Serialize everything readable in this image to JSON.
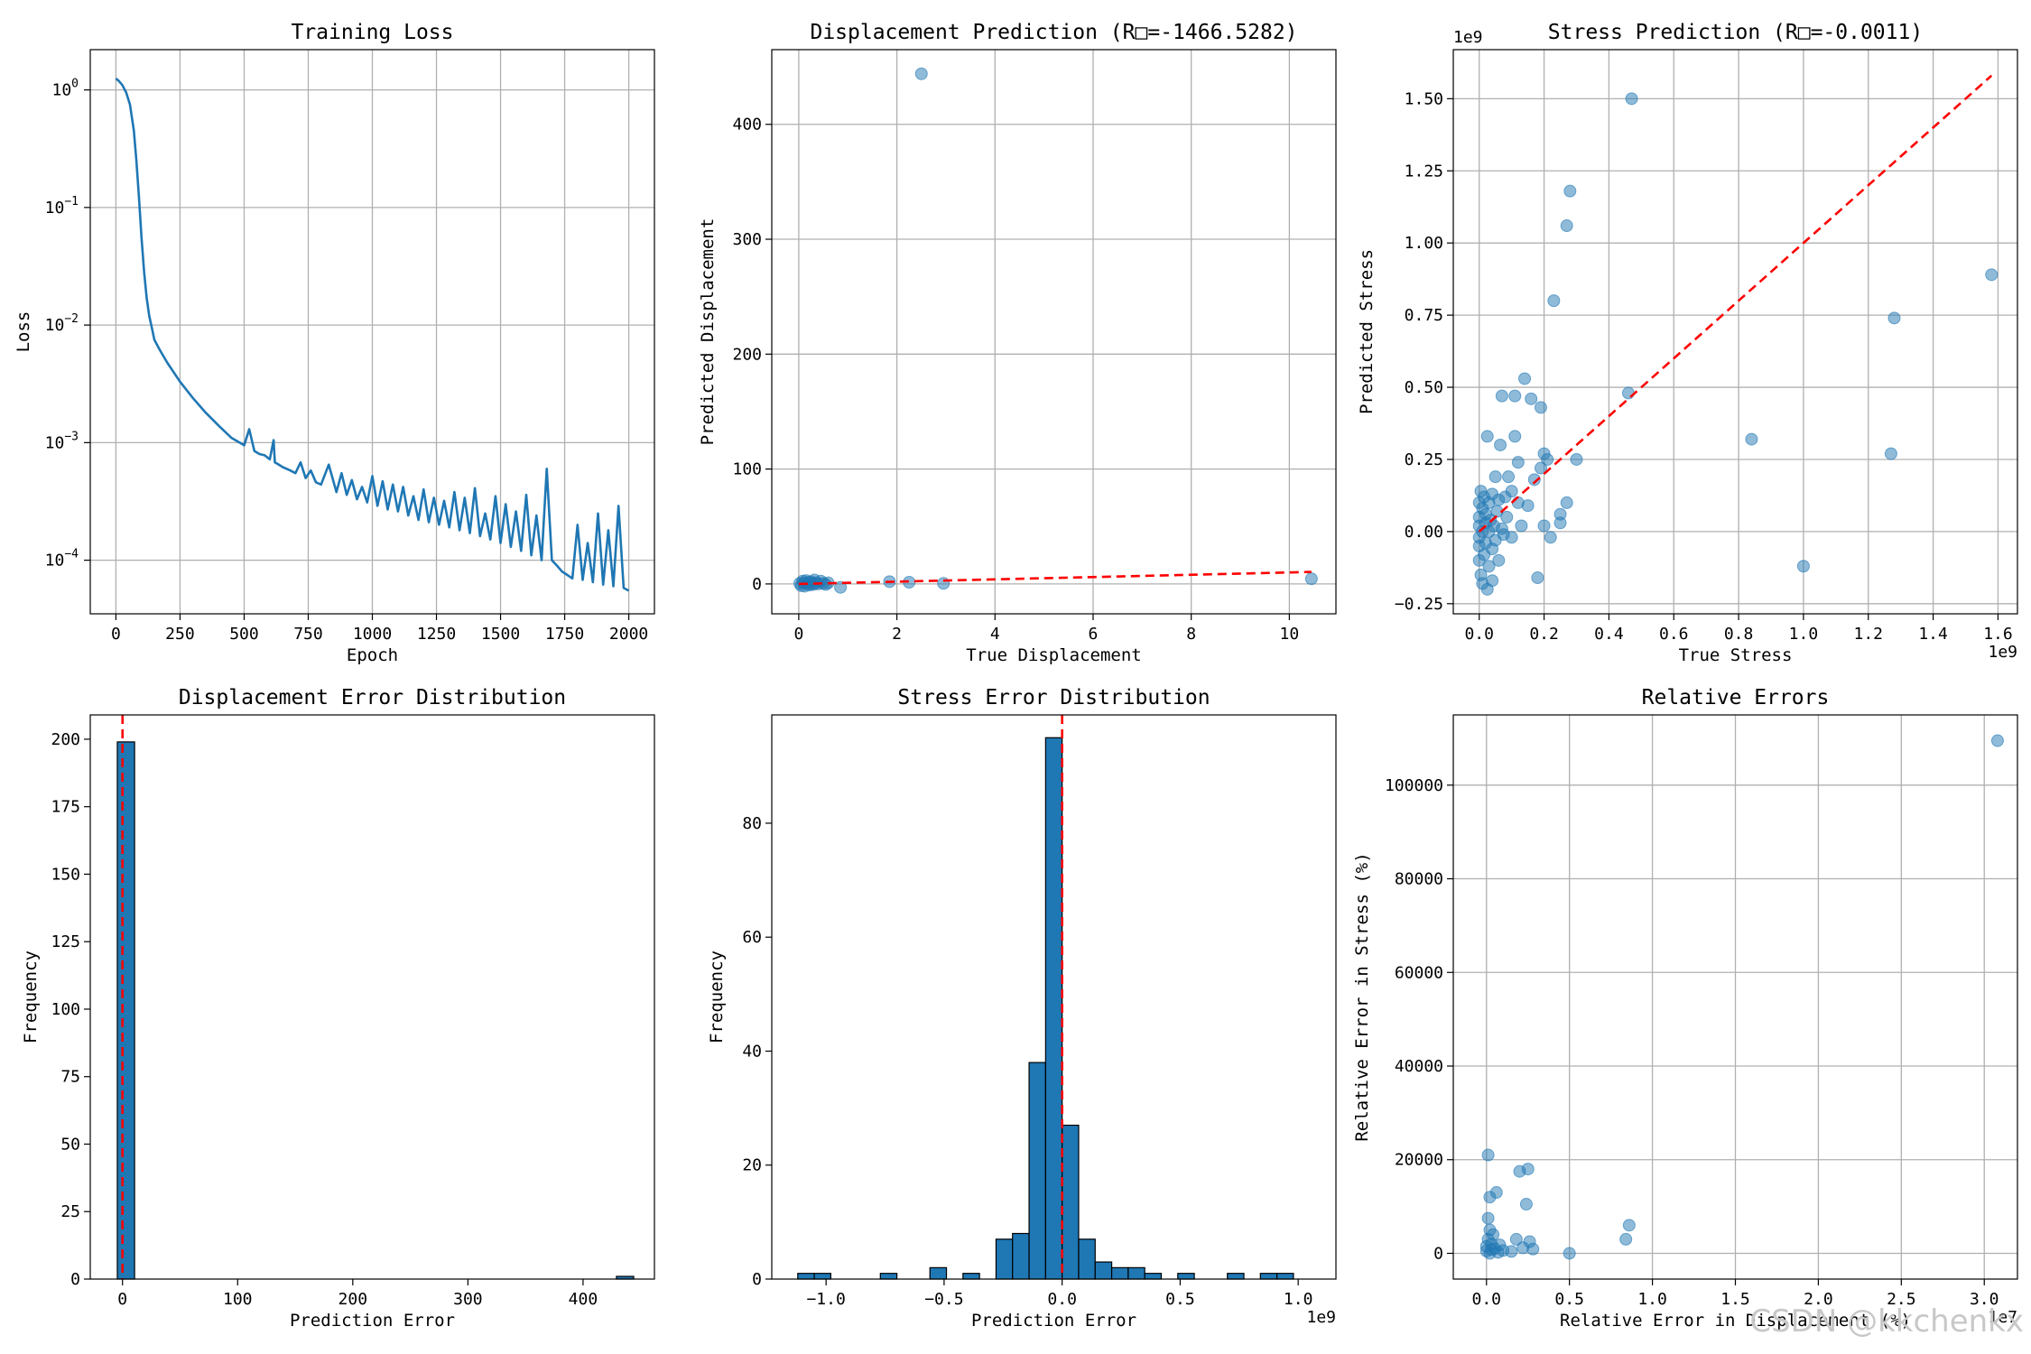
{
  "watermark": "CSDN @kkchenkx",
  "colors": {
    "series": "#1f77b4",
    "reference": "#ff0000",
    "grid": "#b0b0b0"
  },
  "chart_data": [
    {
      "id": "training-loss",
      "type": "line",
      "title": "Training Loss",
      "xlabel": "Epoch",
      "ylabel": "Loss",
      "yscale": "log",
      "xlim": [
        -100,
        2100
      ],
      "ylim": [
        3.5e-05,
        2.2
      ],
      "xticks": [
        0,
        250,
        500,
        750,
        1000,
        1250,
        1500,
        1750,
        2000
      ],
      "yticks": [
        {
          "value": 1,
          "base": "10",
          "exp": "0"
        },
        {
          "value": 0.1,
          "base": "10",
          "exp": "−1"
        },
        {
          "value": 0.01,
          "base": "10",
          "exp": "−2"
        },
        {
          "value": 0.001,
          "base": "10",
          "exp": "−3"
        },
        {
          "value": 0.0001,
          "base": "10",
          "exp": "−4"
        }
      ],
      "x": [
        0,
        10,
        25,
        40,
        55,
        70,
        80,
        90,
        100,
        110,
        120,
        130,
        140,
        150,
        170,
        200,
        250,
        300,
        350,
        400,
        450,
        500,
        520,
        540,
        560,
        580,
        600,
        615,
        620,
        630,
        650,
        680,
        700,
        720,
        740,
        760,
        780,
        800,
        830,
        860,
        880,
        900,
        920,
        940,
        960,
        980,
        1000,
        1020,
        1040,
        1060,
        1080,
        1100,
        1120,
        1140,
        1160,
        1180,
        1200,
        1220,
        1240,
        1260,
        1280,
        1300,
        1320,
        1340,
        1360,
        1380,
        1400,
        1420,
        1440,
        1460,
        1480,
        1500,
        1520,
        1540,
        1560,
        1580,
        1600,
        1620,
        1640,
        1660,
        1680,
        1700,
        1720,
        1740,
        1760,
        1780,
        1800,
        1820,
        1840,
        1860,
        1880,
        1900,
        1920,
        1940,
        1960,
        1980,
        2000
      ],
      "y": [
        1.25,
        1.2,
        1.1,
        0.95,
        0.75,
        0.45,
        0.25,
        0.12,
        0.055,
        0.028,
        0.017,
        0.012,
        0.0095,
        0.0075,
        0.0062,
        0.0048,
        0.0033,
        0.0024,
        0.0018,
        0.0014,
        0.0011,
        0.00095,
        0.0013,
        0.00085,
        0.0008,
        0.00078,
        0.00072,
        0.00105,
        0.00068,
        0.00066,
        0.00062,
        0.00058,
        0.00055,
        0.00068,
        0.0005,
        0.00058,
        0.00046,
        0.00044,
        0.00065,
        0.00038,
        0.00055,
        0.00036,
        0.00048,
        0.00033,
        0.00042,
        0.00031,
        0.00052,
        0.00029,
        0.00047,
        0.00027,
        0.00044,
        0.00026,
        0.00042,
        0.00024,
        0.00035,
        0.00022,
        0.0004,
        0.00021,
        0.00034,
        0.0002,
        0.00032,
        0.00019,
        0.00038,
        0.00018,
        0.00034,
        0.00017,
        0.00041,
        0.00016,
        0.00025,
        0.00015,
        0.00035,
        0.00014,
        0.0003,
        0.00013,
        0.00026,
        0.00012,
        0.00036,
        0.00011,
        0.00024,
        0.0001,
        0.0006,
        0.0001,
        9e-05,
        8e-05,
        7.5e-05,
        7e-05,
        0.0002,
        6.8e-05,
        0.00014,
        6.5e-05,
        0.00025,
        6.2e-05,
        0.00018,
        6e-05,
        0.00029,
        5.8e-05,
        5.5e-05
      ]
    },
    {
      "id": "displacement-prediction",
      "type": "scatter",
      "title": "Displacement Prediction (R□=-1466.5282)",
      "xlabel": "True Displacement",
      "ylabel": "Predicted Displacement",
      "xlim": [
        -0.55,
        10.95
      ],
      "ylim": [
        -26,
        465
      ],
      "xticks": [
        0,
        2,
        4,
        6,
        8,
        10
      ],
      "yticks": [
        0,
        100,
        200,
        300,
        400
      ],
      "points": [
        [
          0.02,
          0.5
        ],
        [
          0.05,
          -1.5
        ],
        [
          0.08,
          2.5
        ],
        [
          0.1,
          1
        ],
        [
          0.12,
          -2
        ],
        [
          0.15,
          3
        ],
        [
          0.18,
          0
        ],
        [
          0.2,
          1.5
        ],
        [
          0.22,
          -1
        ],
        [
          0.25,
          2
        ],
        [
          0.28,
          0.5
        ],
        [
          0.3,
          -0.5
        ],
        [
          0.32,
          3.5
        ],
        [
          0.35,
          1
        ],
        [
          0.4,
          0
        ],
        [
          0.45,
          2.5
        ],
        [
          0.5,
          0.5
        ],
        [
          0.55,
          -0.5
        ],
        [
          0.6,
          1
        ],
        [
          0.85,
          -3
        ],
        [
          1.85,
          2
        ],
        [
          2.25,
          1.5
        ],
        [
          2.5,
          444
        ],
        [
          2.95,
          0.5
        ],
        [
          10.45,
          4.5
        ]
      ],
      "reference_line": {
        "x": [
          0,
          10.45
        ],
        "y": [
          0,
          10.45
        ]
      }
    },
    {
      "id": "stress-prediction",
      "type": "scatter",
      "title": "Stress Prediction (R□=-0.0011)",
      "xlabel": "True Stress",
      "ylabel": "Predicted Stress",
      "multiplier": "1e9",
      "xlim": [
        -0.08,
        1.66
      ],
      "ylim": [
        -0.285,
        1.67
      ],
      "xticks": [
        0.0,
        0.2,
        0.4,
        0.6,
        0.8,
        1.0,
        1.2,
        1.4,
        1.6
      ],
      "yticks": [
        -0.25,
        0.0,
        0.25,
        0.5,
        0.75,
        1.0,
        1.25,
        1.5
      ],
      "points": [
        [
          0.0,
          0.02
        ],
        [
          0.0,
          -0.05
        ],
        [
          0.0,
          0.1
        ],
        [
          0.0,
          -0.1
        ],
        [
          0.0,
          0.05
        ],
        [
          0.0,
          -0.02
        ],
        [
          0.005,
          0.14
        ],
        [
          0.005,
          -0.15
        ],
        [
          0.01,
          -0.18
        ],
        [
          0.01,
          0.08
        ],
        [
          0.01,
          0.0
        ],
        [
          0.015,
          0.12
        ],
        [
          0.015,
          -0.08
        ],
        [
          0.02,
          0.03
        ],
        [
          0.02,
          -0.04
        ],
        [
          0.02,
          0.06
        ],
        [
          0.025,
          -0.2
        ],
        [
          0.025,
          0.33
        ],
        [
          0.03,
          0.1
        ],
        [
          0.03,
          -0.12
        ],
        [
          0.03,
          0.0
        ],
        [
          0.035,
          0.04
        ],
        [
          0.04,
          -0.06
        ],
        [
          0.04,
          0.13
        ],
        [
          0.04,
          -0.17
        ],
        [
          0.045,
          0.02
        ],
        [
          0.05,
          0.19
        ],
        [
          0.05,
          -0.03
        ],
        [
          0.055,
          0.07
        ],
        [
          0.06,
          0.11
        ],
        [
          0.06,
          -0.1
        ],
        [
          0.065,
          0.3
        ],
        [
          0.07,
          0.47
        ],
        [
          0.07,
          0.01
        ],
        [
          0.075,
          -0.01
        ],
        [
          0.08,
          0.12
        ],
        [
          0.085,
          0.05
        ],
        [
          0.09,
          0.19
        ],
        [
          0.1,
          0.14
        ],
        [
          0.1,
          -0.02
        ],
        [
          0.11,
          0.33
        ],
        [
          0.11,
          0.47
        ],
        [
          0.12,
          0.1
        ],
        [
          0.12,
          0.24
        ],
        [
          0.13,
          0.02
        ],
        [
          0.14,
          0.53
        ],
        [
          0.15,
          0.09
        ],
        [
          0.16,
          0.46
        ],
        [
          0.17,
          0.18
        ],
        [
          0.18,
          -0.16
        ],
        [
          0.19,
          0.22
        ],
        [
          0.19,
          0.43
        ],
        [
          0.2,
          0.27
        ],
        [
          0.2,
          0.02
        ],
        [
          0.21,
          0.25
        ],
        [
          0.22,
          -0.02
        ],
        [
          0.23,
          0.8
        ],
        [
          0.25,
          0.03
        ],
        [
          0.25,
          0.06
        ],
        [
          0.27,
          1.06
        ],
        [
          0.27,
          0.1
        ],
        [
          0.28,
          1.18
        ],
        [
          0.3,
          0.25
        ],
        [
          0.46,
          0.48
        ],
        [
          0.47,
          1.5
        ],
        [
          0.84,
          0.32
        ],
        [
          1.0,
          -0.12
        ],
        [
          1.27,
          0.27
        ],
        [
          1.28,
          0.74
        ],
        [
          1.58,
          0.89
        ]
      ],
      "reference_line": {
        "x": [
          0,
          1.58
        ],
        "y": [
          0,
          1.58
        ]
      }
    },
    {
      "id": "displacement-error-distribution",
      "type": "bar",
      "title": "Displacement Error Distribution",
      "xlabel": "Prediction Error",
      "ylabel": "Frequency",
      "xlim": [
        -28,
        462
      ],
      "ylim": [
        0,
        209
      ],
      "xticks": [
        0,
        100,
        200,
        300,
        400
      ],
      "yticks": [
        0,
        25,
        50,
        75,
        100,
        125,
        150,
        175,
        200
      ],
      "bins": [
        {
          "x0": -4.5,
          "x1": 10.5,
          "count": 199
        },
        {
          "x0": 429,
          "x1": 444,
          "count": 1
        }
      ],
      "reference_line_x": 0
    },
    {
      "id": "stress-error-distribution",
      "type": "bar",
      "title": "Stress Error Distribution",
      "xlabel": "Prediction Error",
      "ylabel": "Frequency",
      "multiplier": "1e9",
      "xlim": [
        -1.23,
        1.16
      ],
      "ylim": [
        0,
        99
      ],
      "xticks": [
        -1.0,
        -0.5,
        0.0,
        0.5,
        1.0
      ],
      "yticks": [
        0,
        20,
        40,
        60,
        80
      ],
      "bin_edges": [
        -1.12,
        -1.05,
        -0.98,
        -0.91,
        -0.84,
        -0.77,
        -0.7,
        -0.63,
        -0.56,
        -0.49,
        -0.42,
        -0.35,
        -0.28,
        -0.21,
        -0.14,
        -0.07,
        0.0,
        0.07,
        0.14,
        0.21,
        0.28,
        0.35,
        0.42,
        0.49,
        0.56,
        0.63,
        0.7,
        0.77,
        0.84,
        0.91,
        0.98,
        1.05
      ],
      "counts": [
        1,
        1,
        0,
        0,
        0,
        1,
        0,
        0,
        2,
        0,
        1,
        0,
        7,
        8,
        38,
        95,
        27,
        7,
        3,
        2,
        2,
        1,
        0,
        1,
        0,
        0,
        1,
        0,
        1,
        1,
        0
      ],
      "reference_line_x": 0
    },
    {
      "id": "relative-errors",
      "type": "scatter",
      "title": "Relative Errors",
      "xlabel": "Relative Error in Displacement (%)",
      "ylabel": "Relative Error in Stress (%)",
      "x_multiplier": "1e7",
      "xlim": [
        -0.2,
        3.2
      ],
      "ylim": [
        -5500,
        115000
      ],
      "xticks": [
        0.0,
        0.5,
        1.0,
        1.5,
        2.0,
        2.5,
        3.0
      ],
      "yticks": [
        0,
        20000,
        40000,
        60000,
        80000,
        100000
      ],
      "points": [
        [
          0.0,
          500
        ],
        [
          0.0,
          1500
        ],
        [
          0.01,
          21000
        ],
        [
          0.01,
          7500
        ],
        [
          0.01,
          3000
        ],
        [
          0.02,
          12000
        ],
        [
          0.02,
          5000
        ],
        [
          0.02,
          0
        ],
        [
          0.03,
          2000
        ],
        [
          0.03,
          800
        ],
        [
          0.04,
          4000
        ],
        [
          0.05,
          1000
        ],
        [
          0.06,
          13000
        ],
        [
          0.07,
          200
        ],
        [
          0.08,
          1800
        ],
        [
          0.1,
          600
        ],
        [
          0.15,
          400
        ],
        [
          0.18,
          3000
        ],
        [
          0.2,
          17500
        ],
        [
          0.22,
          1200
        ],
        [
          0.24,
          10500
        ],
        [
          0.25,
          18000
        ],
        [
          0.26,
          2500
        ],
        [
          0.28,
          900
        ],
        [
          0.5,
          0
        ],
        [
          0.84,
          3000
        ],
        [
          0.86,
          6000
        ],
        [
          3.08,
          109500
        ]
      ]
    }
  ]
}
